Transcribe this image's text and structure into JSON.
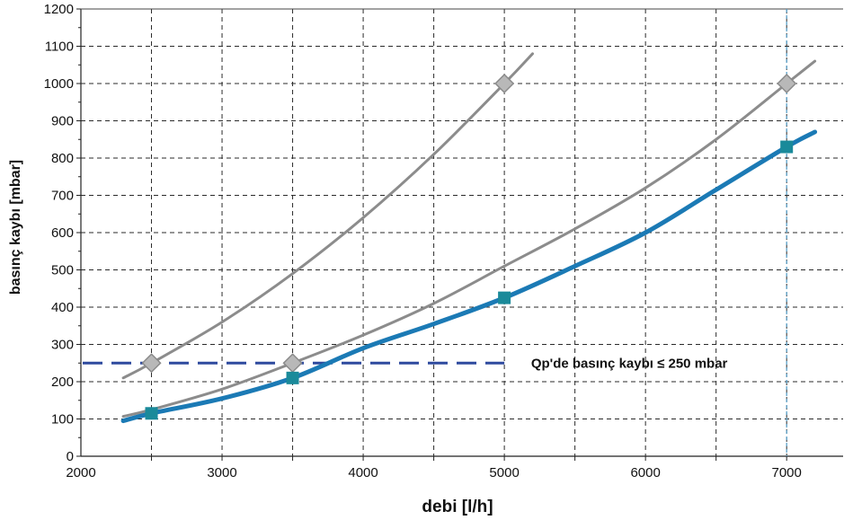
{
  "chart_data": {
    "type": "line",
    "title": "",
    "xlabel": "debi [l/h]",
    "ylabel": "basınç kaybı [mbar]",
    "xlim": [
      2000,
      7400
    ],
    "ylim": [
      0,
      1200
    ],
    "x_ticks": [
      2000,
      3000,
      4000,
      5000,
      6000,
      7000
    ],
    "y_ticks": [
      0,
      100,
      200,
      300,
      400,
      500,
      600,
      700,
      800,
      900,
      1000,
      1100,
      1200
    ],
    "grid": true,
    "series": [
      {
        "color": "#8c8c8c",
        "curve": {
          "x": [
            2300,
            2500,
            3000,
            3500,
            4000,
            4500,
            5000,
            5200
          ],
          "y": [
            210,
            250,
            360,
            490,
            640,
            810,
            1000,
            1080
          ]
        },
        "markers": {
          "shape": "diamond",
          "x": [
            2500,
            5000
          ],
          "y": [
            250,
            1000
          ]
        }
      },
      {
        "color": "#8c8c8c",
        "curve": {
          "x": [
            2300,
            2500,
            3000,
            3500,
            4000,
            4500,
            5000,
            5500,
            6000,
            6500,
            7000,
            7200
          ],
          "y": [
            107,
            125,
            180,
            250,
            325,
            410,
            510,
            610,
            720,
            850,
            1000,
            1060
          ]
        },
        "markers": {
          "shape": "diamond",
          "x": [
            3500,
            7000
          ],
          "y": [
            250,
            1000
          ]
        }
      },
      {
        "color": "#1b7ab5",
        "curve": {
          "x": [
            2300,
            2500,
            3000,
            3500,
            4000,
            4500,
            5000,
            5500,
            6000,
            6500,
            7000,
            7200
          ],
          "y": [
            95,
            115,
            155,
            210,
            290,
            355,
            425,
            510,
            600,
            715,
            830,
            870
          ]
        },
        "markers": {
          "shape": "square",
          "x": [
            2500,
            3500,
            5000,
            7000
          ],
          "y": [
            115,
            210,
            425,
            830
          ]
        }
      }
    ],
    "reference_line": {
      "y": 250,
      "x_range": [
        2000,
        5000
      ],
      "color": "#2e4a9e",
      "style": "dashed"
    },
    "vertical_marker": {
      "x": 7000,
      "color": "#5aa0c8"
    },
    "annotation": {
      "text": "Qp'de basınç kaybı ≤ 250 mbar",
      "x": 5100,
      "y": 250
    }
  }
}
